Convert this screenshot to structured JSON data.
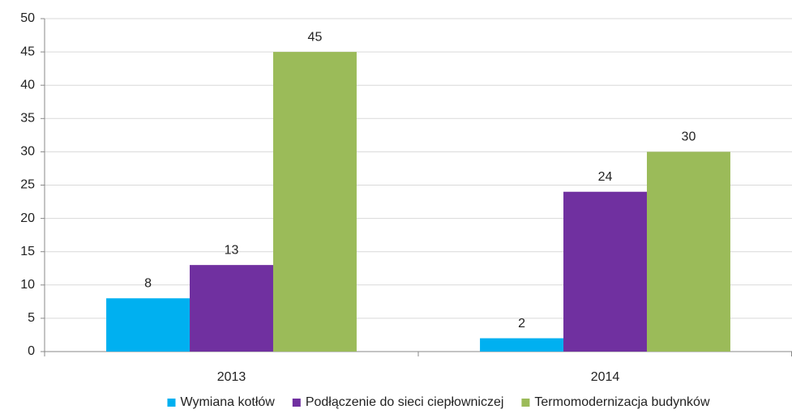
{
  "chart_data": {
    "type": "bar",
    "categories": [
      "2013",
      "2014"
    ],
    "series": [
      {
        "name": "Wymiana kotłów",
        "color": "#00b0f0",
        "values": [
          8,
          2
        ]
      },
      {
        "name": "Podłączenie do sieci ciepłowniczej",
        "color": "#7030a0",
        "values": [
          13,
          24
        ]
      },
      {
        "name": "Termomodernizacja budynków",
        "color": "#9bbb59",
        "values": [
          45,
          30
        ]
      }
    ],
    "ylim": [
      0,
      50
    ],
    "yticks": [
      0,
      5,
      10,
      15,
      20,
      25,
      30,
      35,
      40,
      45,
      50
    ],
    "grid": true,
    "legend": "bottom",
    "data_labels": true
  }
}
